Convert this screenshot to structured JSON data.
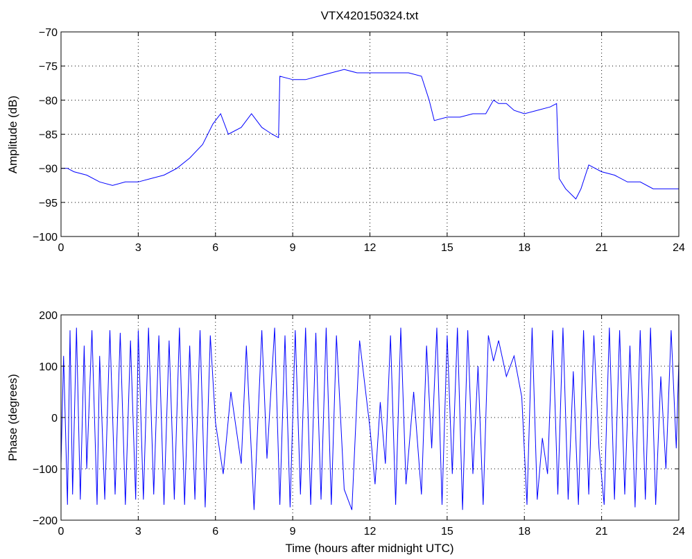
{
  "figure": {
    "title": "VTX420150324.txt"
  },
  "chart_data": [
    {
      "type": "line",
      "title": "VTX420150324.txt",
      "xlabel": "",
      "ylabel": "Amplitude (dB)",
      "xlim": [
        0,
        24
      ],
      "ylim": [
        -100,
        -70
      ],
      "xticks": [
        0,
        3,
        6,
        9,
        12,
        15,
        18,
        21,
        24
      ],
      "yticks": [
        -100,
        -95,
        -90,
        -85,
        -80,
        -75,
        -70
      ],
      "grid": true,
      "line_color": "#0000ff",
      "series": [
        {
          "x": [
            0,
            0.25,
            0.5,
            1,
            1.5,
            2,
            2.5,
            3,
            3.5,
            4,
            4.5,
            5,
            5.5,
            5.9,
            6.2,
            6.5,
            7,
            7.4,
            7.8,
            8.2,
            8.45,
            8.5,
            9,
            9.5,
            10,
            10.5,
            11,
            11.5,
            12,
            12.5,
            13,
            13.5,
            14,
            14.3,
            14.5,
            15,
            15.5,
            16,
            16.5,
            16.8,
            17,
            17.3,
            17.6,
            18,
            18.5,
            19,
            19.25,
            19.35,
            19.6,
            20,
            20.2,
            20.5,
            21,
            21.5,
            22,
            22.5,
            23,
            23.5,
            24
          ],
          "y": [
            -90,
            -90,
            -90.5,
            -91,
            -92,
            -92.5,
            -92,
            -92,
            -91.5,
            -91,
            -90,
            -88.5,
            -86.5,
            -83.5,
            -82,
            -85,
            -84,
            -82,
            -84,
            -85,
            -85.5,
            -76.5,
            -77,
            -77,
            -76.5,
            -76,
            -75.5,
            -76,
            -76,
            -76,
            -76,
            -76,
            -76.5,
            -80,
            -83,
            -82.5,
            -82.5,
            -82,
            -82,
            -80,
            -80.5,
            -80.5,
            -81.5,
            -82,
            -81.5,
            -81,
            -80.5,
            -91.5,
            -93,
            -94.5,
            -93,
            -89.5,
            -90.5,
            -91,
            -92,
            -92,
            -93,
            -93,
            -93
          ]
        }
      ]
    },
    {
      "type": "line",
      "title": "",
      "xlabel": "Time (hours after midnight UTC)",
      "ylabel": "Phase (degrees)",
      "xlim": [
        0,
        24
      ],
      "ylim": [
        -200,
        200
      ],
      "xticks": [
        0,
        3,
        6,
        9,
        12,
        15,
        18,
        21,
        24
      ],
      "yticks": [
        -200,
        -100,
        0,
        100,
        200
      ],
      "grid": true,
      "line_color": "#0000ff",
      "series": [
        {
          "x": [
            0,
            0.1,
            0.25,
            0.35,
            0.45,
            0.6,
            0.75,
            0.9,
            1.0,
            1.2,
            1.4,
            1.5,
            1.7,
            1.9,
            2.1,
            2.3,
            2.5,
            2.7,
            2.9,
            3.0,
            3.2,
            3.4,
            3.6,
            3.8,
            4.0,
            4.2,
            4.4,
            4.6,
            4.8,
            5.0,
            5.2,
            5.4,
            5.6,
            5.8,
            6.0,
            6.3,
            6.6,
            7.0,
            7.2,
            7.5,
            7.8,
            8.0,
            8.3,
            8.5,
            8.7,
            8.9,
            9.1,
            9.3,
            9.5,
            9.7,
            9.9,
            10.1,
            10.3,
            10.5,
            10.7,
            11.0,
            11.3,
            11.6,
            12.0,
            12.2,
            12.4,
            12.6,
            12.8,
            13.0,
            13.2,
            13.4,
            13.7,
            14.0,
            14.2,
            14.4,
            14.6,
            14.8,
            15.0,
            15.2,
            15.4,
            15.6,
            15.8,
            16.0,
            16.2,
            16.4,
            16.6,
            16.8,
            17.0,
            17.3,
            17.6,
            17.9,
            18.1,
            18.3,
            18.5,
            18.7,
            18.9,
            19.1,
            19.3,
            19.5,
            19.7,
            19.9,
            20.1,
            20.3,
            20.5,
            20.7,
            20.9,
            21.1,
            21.3,
            21.5,
            21.7,
            21.9,
            22.1,
            22.3,
            22.5,
            22.7,
            22.9,
            23.1,
            23.3,
            23.5,
            23.7,
            23.9,
            24
          ],
          "y": [
            -90,
            120,
            -170,
            170,
            -150,
            175,
            -160,
            140,
            -100,
            170,
            -170,
            120,
            -160,
            170,
            -150,
            165,
            -170,
            150,
            -160,
            170,
            -160,
            175,
            -150,
            160,
            -170,
            150,
            -160,
            175,
            -170,
            140,
            -160,
            170,
            -175,
            160,
            -10,
            -110,
            50,
            -90,
            140,
            -180,
            170,
            -80,
            175,
            -170,
            160,
            -175,
            170,
            -150,
            175,
            -170,
            165,
            -160,
            175,
            -170,
            160,
            -140,
            -180,
            150,
            -20,
            -130,
            30,
            -90,
            160,
            -170,
            175,
            -130,
            50,
            -150,
            140,
            -60,
            175,
            -170,
            160,
            -110,
            175,
            -180,
            170,
            -110,
            100,
            -170,
            160,
            110,
            150,
            80,
            120,
            40,
            -170,
            175,
            -160,
            -40,
            -110,
            170,
            -150,
            175,
            -160,
            90,
            -170,
            170,
            -150,
            160,
            -60,
            -170,
            175,
            -160,
            170,
            -150,
            140,
            -175,
            170,
            -160,
            175,
            -170,
            80,
            -100,
            170,
            -60,
            110
          ]
        }
      ]
    }
  ]
}
